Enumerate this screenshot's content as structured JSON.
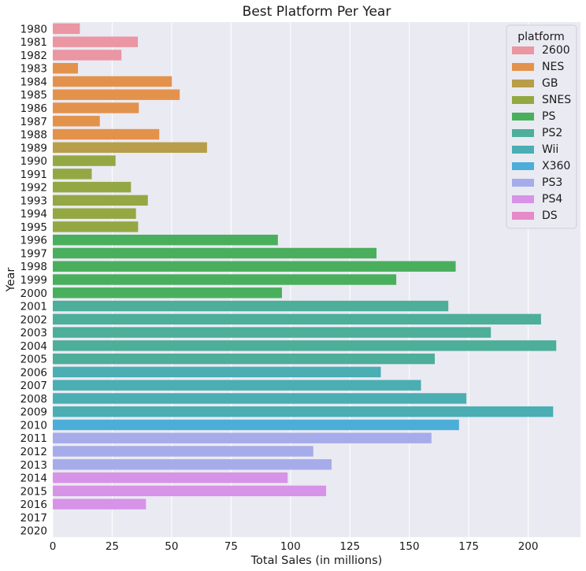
{
  "chart_data": {
    "type": "bar",
    "orientation": "horizontal",
    "title": "Best Platform Per Year",
    "xlabel": "Total Sales (in millions)",
    "ylabel": "Year",
    "xlim": [
      0,
      222
    ],
    "xticks": [
      0,
      25,
      50,
      75,
      100,
      125,
      150,
      175,
      200
    ],
    "grid": true,
    "legend_title": "platform",
    "legend_position": "top-right",
    "background": "#eaeaf2",
    "legend": [
      {
        "name": "2600",
        "color": "#ea96a3"
      },
      {
        "name": "NES",
        "color": "#e3924c"
      },
      {
        "name": "GB",
        "color": "#b89d4a"
      },
      {
        "name": "SNES",
        "color": "#93a843"
      },
      {
        "name": "PS",
        "color": "#4aaf5d"
      },
      {
        "name": "PS2",
        "color": "#4dae99"
      },
      {
        "name": "Wii",
        "color": "#4aaeb3"
      },
      {
        "name": "X360",
        "color": "#4caed8"
      },
      {
        "name": "PS3",
        "color": "#a6acea"
      },
      {
        "name": "PS4",
        "color": "#d793e8"
      },
      {
        "name": "DS",
        "color": "#e68ac9"
      }
    ],
    "categories": [
      "1980",
      "1981",
      "1982",
      "1983",
      "1984",
      "1985",
      "1986",
      "1987",
      "1988",
      "1989",
      "1990",
      "1991",
      "1992",
      "1993",
      "1994",
      "1995",
      "1996",
      "1997",
      "1998",
      "1999",
      "2000",
      "2001",
      "2002",
      "2003",
      "2004",
      "2005",
      "2006",
      "2007",
      "2008",
      "2009",
      "2010",
      "2011",
      "2012",
      "2013",
      "2014",
      "2015",
      "2016",
      "2017",
      "2020"
    ],
    "values": [
      11.4,
      35.8,
      28.9,
      10.6,
      50.1,
      53.4,
      36.2,
      19.8,
      44.8,
      64.9,
      26.4,
      16.4,
      32.9,
      40.0,
      35.0,
      35.9,
      94.7,
      136.2,
      169.5,
      144.5,
      96.4,
      166.4,
      205.4,
      184.3,
      211.8,
      160.7,
      138.0,
      154.9,
      174.0,
      210.5,
      170.9,
      159.3,
      109.6,
      117.3,
      98.8,
      115.0,
      39.2,
      0,
      0
    ],
    "platforms": [
      "2600",
      "2600",
      "2600",
      "NES",
      "NES",
      "NES",
      "NES",
      "NES",
      "NES",
      "GB",
      "SNES",
      "SNES",
      "SNES",
      "SNES",
      "SNES",
      "SNES",
      "PS",
      "PS",
      "PS",
      "PS",
      "PS",
      "PS2",
      "PS2",
      "PS2",
      "PS2",
      "PS2",
      "Wii",
      "Wii",
      "Wii",
      "Wii",
      "X360",
      "PS3",
      "PS3",
      "PS3",
      "PS4",
      "PS4",
      "PS4",
      "PS4",
      "PS4"
    ]
  }
}
